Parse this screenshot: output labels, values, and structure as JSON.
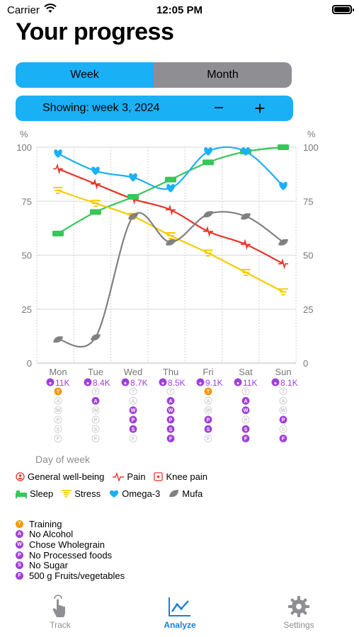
{
  "status_bar": {
    "carrier": "Carrier",
    "time": "12:05 PM"
  },
  "title": "Your progress",
  "segment": {
    "week_label": "Week",
    "month_label": "Month",
    "selected": "Week"
  },
  "showing": {
    "label": "Showing: week 3, 2024",
    "minus": "−",
    "plus": "+"
  },
  "colors": {
    "accent": "#1ab0f5",
    "pain": "#e8352a",
    "sleep": "#35c759",
    "stress": "#f5cc00",
    "omega3": "#1ab0f5",
    "mufa": "#808080",
    "habit_orange": "#f5960f",
    "habit_purple": "#a040d9",
    "tab_active": "#1a7fd6"
  },
  "chart_data": {
    "type": "line",
    "categories": [
      "Mon",
      "Tue",
      "Wed",
      "Thu",
      "Fri",
      "Sat",
      "Sun"
    ],
    "y_unit_left": "%",
    "y_unit_right": "%",
    "ylim": [
      0,
      100
    ],
    "y_ticks": [
      0,
      25,
      50,
      75,
      100
    ],
    "grid": true,
    "series": [
      {
        "name": "Pain",
        "color": "#e8352a",
        "icon": "pulse-icon",
        "values": [
          90,
          83,
          76,
          71,
          61,
          55,
          46
        ]
      },
      {
        "name": "Sleep",
        "color": "#35c759",
        "icon": "bed-icon",
        "values": [
          60,
          70,
          77,
          85,
          93,
          98,
          100
        ]
      },
      {
        "name": "Stress",
        "color": "#f5cc00",
        "icon": "tornado-icon",
        "values": [
          80,
          74,
          68,
          59,
          51,
          42,
          33
        ]
      },
      {
        "name": "Omega-3",
        "color": "#1ab0f5",
        "icon": "heart-icon",
        "values": [
          97,
          89,
          86,
          81,
          98,
          98,
          82
        ]
      },
      {
        "name": "Mufa",
        "color": "#808080",
        "icon": "leaf-icon",
        "values": [
          11,
          12,
          68,
          56,
          69,
          68,
          56
        ]
      }
    ],
    "steps": [
      "11K",
      "8.4K",
      "8.7K",
      "8.5K",
      "9.1K",
      "11K",
      "8.1K"
    ],
    "habit_codes": [
      "T",
      "A",
      "W",
      "P",
      "S",
      "F"
    ],
    "habits_done": [
      [
        true,
        false,
        false,
        false,
        false,
        false
      ],
      [
        false,
        true,
        false,
        false,
        false,
        false
      ],
      [
        false,
        false,
        true,
        true,
        true,
        false
      ],
      [
        false,
        true,
        true,
        true,
        true,
        true
      ],
      [
        true,
        false,
        false,
        true,
        true,
        false
      ],
      [
        false,
        true,
        true,
        false,
        true,
        true
      ],
      [
        false,
        false,
        false,
        true,
        false,
        true
      ]
    ],
    "xlabel": "Day of week"
  },
  "legend": {
    "general": "General well-being",
    "pain": "Pain",
    "knee": "Knee pain",
    "sleep": "Sleep",
    "stress": "Stress",
    "omega3": "Omega-3",
    "mufa": "Mufa"
  },
  "habits": [
    {
      "code": "T",
      "label": "Training",
      "color": "#f5960f"
    },
    {
      "code": "A",
      "label": "No Alcohol",
      "color": "#a040d9"
    },
    {
      "code": "W",
      "label": "Chose Wholegrain",
      "color": "#a040d9"
    },
    {
      "code": "P",
      "label": "No Processed foods",
      "color": "#a040d9"
    },
    {
      "code": "S",
      "label": "No Sugar",
      "color": "#a040d9"
    },
    {
      "code": "F",
      "label": "500 g Fruits/vegetables",
      "color": "#a040d9"
    }
  ],
  "tabs": [
    {
      "label": "Track",
      "icon": "hand-tap-icon"
    },
    {
      "label": "Analyze",
      "icon": "chart-line-icon",
      "active": true
    },
    {
      "label": "Settings",
      "icon": "gear-icon"
    }
  ]
}
